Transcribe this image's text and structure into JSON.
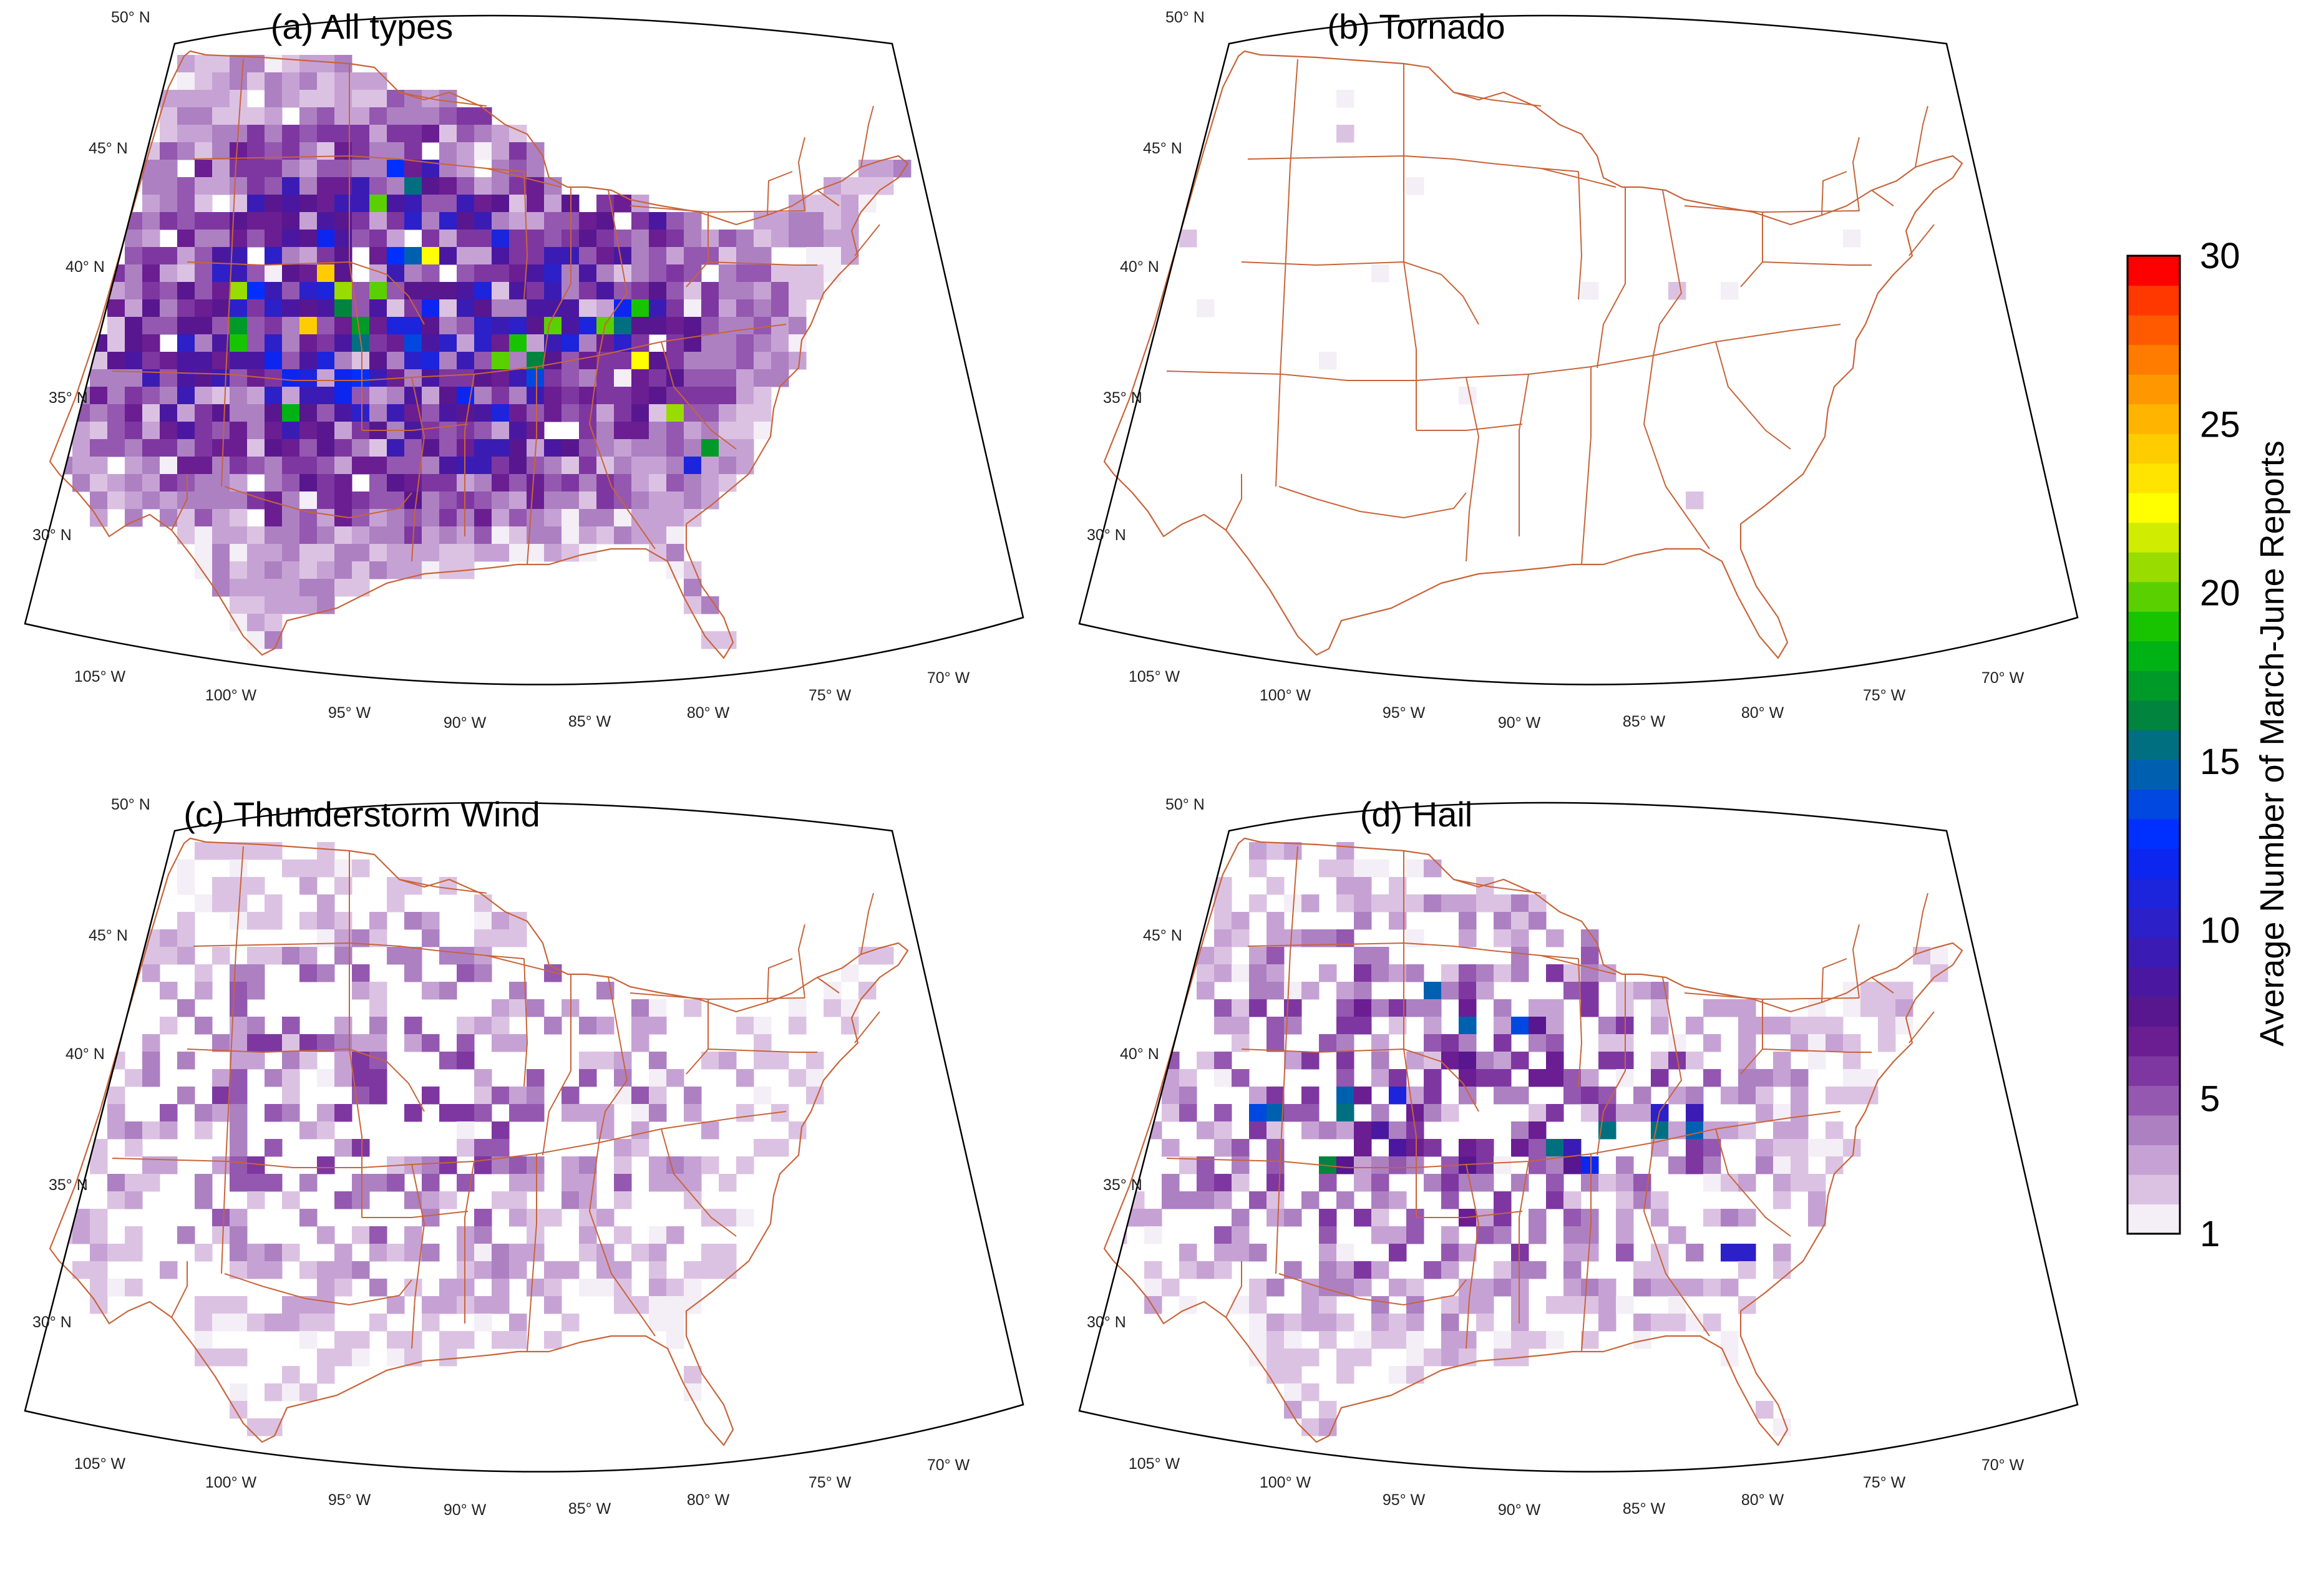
{
  "panels": [
    {
      "id": "a",
      "title": "(a) All types",
      "intensity": 1.0,
      "hotspots": true
    },
    {
      "id": "b",
      "title": "(b) Tornado",
      "intensity": 0.0,
      "hotspots": false
    },
    {
      "id": "c",
      "title": "(c) Thunderstorm Wind",
      "intensity": 0.45,
      "hotspots": false
    },
    {
      "id": "d",
      "title": "(d) Hail",
      "intensity": 0.55,
      "hotspots": true
    }
  ],
  "lat_labels": [
    "50° N",
    "45° N",
    "40° N",
    "35° N",
    "30° N"
  ],
  "lon_labels": [
    "105° W",
    "100° W",
    "95° W",
    "90° W",
    "85° W",
    "80° W",
    "75° W",
    "70° W"
  ],
  "colorbar": {
    "label": "Average Number of March-June Reports",
    "ticks": [
      "30",
      "25",
      "20",
      "15",
      "10",
      "5",
      "1"
    ],
    "min": 1,
    "max": 30,
    "colors": [
      "#f4eef6",
      "#dcc2e2",
      "#c6a2d4",
      "#ad80c2",
      "#9458b0",
      "#7e37a0",
      "#6a1e92",
      "#58178e",
      "#4a18a0",
      "#3a1cb4",
      "#2c20c8",
      "#1c24dc",
      "#0c26ef",
      "#0030ff",
      "#0048e0",
      "#0060b0",
      "#007080",
      "#00843e",
      "#009a28",
      "#00b214",
      "#18c400",
      "#5ad000",
      "#98dc00",
      "#d0ec00",
      "#ffff00",
      "#ffe400",
      "#ffcc00",
      "#ffb400",
      "#ff9800",
      "#ff7c00",
      "#ff5a00",
      "#ff3800",
      "#ff0000"
    ]
  },
  "chart_data": {
    "type": "heatmap",
    "value_label": "Average Number of March-June Reports",
    "range": [
      1,
      30
    ],
    "panels": [
      "(a) All types",
      "(b) Tornado",
      "(c) Thunderstorm Wind",
      "(d) Hail"
    ],
    "lat_ticks": [
      "50° N",
      "45° N",
      "40° N",
      "35° N",
      "30° N"
    ],
    "lon_ticks": [
      "105° W",
      "100° W",
      "95° W",
      "90° W",
      "85° W",
      "80° W",
      "75° W",
      "70° W"
    ],
    "colorbar_ticks": [
      1,
      5,
      10,
      15,
      20,
      25,
      30
    ]
  }
}
